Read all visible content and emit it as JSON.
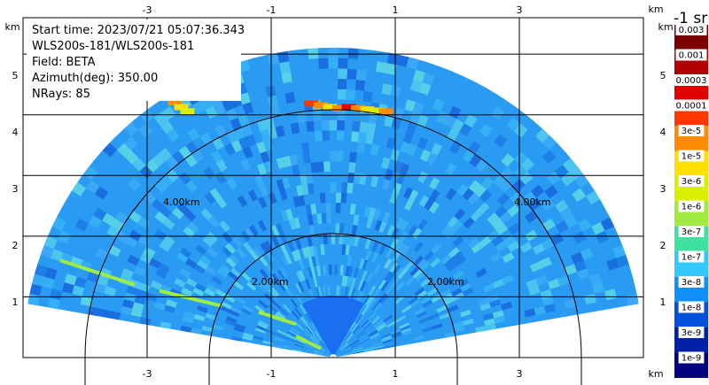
{
  "info": {
    "start_time": "Start time: 2023/07/21 05:07:36.343",
    "instrument": "WLS200s-181/WLS200s-181",
    "field": "Field: BETA",
    "azimuth": "Azimuth(deg): 350.00",
    "nrays": "NRays: 85"
  },
  "axes": {
    "unit": "km",
    "x_ticks": [
      "-3",
      "-1",
      "1",
      "3"
    ],
    "y_ticks": [
      "5",
      "4",
      "3",
      "2",
      "1"
    ],
    "x_range": [
      -5.0,
      5.0
    ],
    "y_range": [
      0.0,
      5.6
    ],
    "x_tick_values": [
      -3,
      -1,
      1,
      3
    ],
    "y_tick_values": [
      5,
      4,
      3,
      2,
      1
    ]
  },
  "range_rings": [
    {
      "label": "2.00km",
      "radius_km": 2
    },
    {
      "label": "4.00km",
      "radius_km": 4
    }
  ],
  "colorbar": {
    "title": "-1 sr",
    "labels": [
      "0.003",
      "0.001",
      "0.0003",
      "0.0001",
      "3e-5",
      "1e-5",
      "3e-6",
      "1e-6",
      "3e-7",
      "1e-7",
      "3e-8",
      "1e-8",
      "3e-9",
      "1e-9"
    ],
    "colors": [
      "#7a0000",
      "#b00000",
      "#e00000",
      "#ff3800",
      "#ff8c00",
      "#ffe000",
      "#d8f000",
      "#a0ec40",
      "#40e0a0",
      "#30c8ff",
      "#1090ff",
      "#0050e0",
      "#0020a8",
      "#000080"
    ]
  },
  "scan": {
    "max_range_km": 5.0,
    "sector_deg": [
      -80,
      80
    ],
    "base_color": "#2a9bf3"
  }
}
